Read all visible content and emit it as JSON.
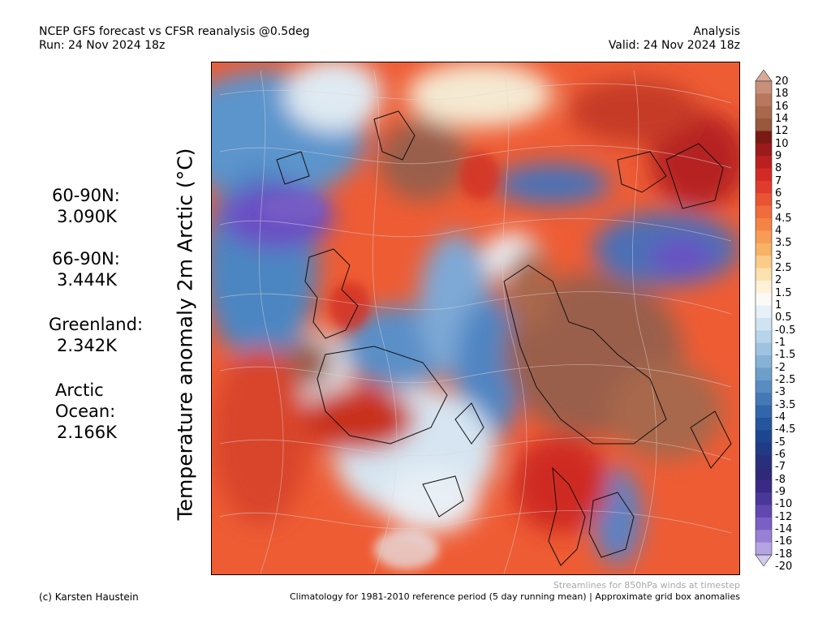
{
  "header": {
    "title": "NCEP GFS forecast vs CFSR reanalysis @0.5deg",
    "run": "Run: 24 Nov 2024 18z",
    "type": "Analysis",
    "valid": "Valid: 24 Nov 2024 18z"
  },
  "ylabel": "Temperature anomaly 2m Arctic (°C)",
  "stats": [
    {
      "label": "60-90N:",
      "value": "3.090K"
    },
    {
      "label": "66-90N:",
      "value": "3.444K"
    },
    {
      "label": "Greenland:",
      "value": "2.342K"
    },
    {
      "label": "Arctic",
      "label2": "Ocean:",
      "value": "2.166K"
    }
  ],
  "colorbar": {
    "labels": [
      "20",
      "18",
      "16",
      "14",
      "12",
      "10",
      "9",
      "8",
      "7",
      "6",
      "5",
      "4.5",
      "4",
      "3.5",
      "3",
      "2.5",
      "2",
      "1.5",
      "1",
      "0.5",
      "-0.5",
      "-1",
      "-1.5",
      "-2",
      "-2.5",
      "-3",
      "-3.5",
      "-4",
      "-4.5",
      "-5",
      "-6",
      "-7",
      "-8",
      "-9",
      "-10",
      "-12",
      "-14",
      "-16",
      "-18",
      "-20"
    ],
    "colors": [
      "#d8a898",
      "#c89078",
      "#b87860",
      "#a8684c",
      "#98583c",
      "#7a1a14",
      "#9c1a1a",
      "#bb2020",
      "#d42a26",
      "#e03c2e",
      "#ea5434",
      "#f06c3c",
      "#f48446",
      "#f69c54",
      "#f8b266",
      "#facc88",
      "#fce2ae",
      "#fff2d8",
      "#fafaf6",
      "#e6f0f8",
      "#cfe3f1",
      "#b7d4ea",
      "#9ec3e0",
      "#86b2d6",
      "#6e9fcb",
      "#598cc0",
      "#4479b5",
      "#3266aa",
      "#24559d",
      "#1c4690",
      "#203a86",
      "#28307e",
      "#302878",
      "#3a2a86",
      "#4a3898",
      "#6048b0",
      "#7a60c4",
      "#9880d4",
      "#b6a4e2",
      "#d4c8ee"
    ]
  },
  "map_colors": {
    "warm_dark": "#9a5f4c",
    "warm_red": "#cf2a23",
    "warm_orange": "#ee6a3a",
    "cold_blue": "#4c86c2",
    "cold_purple": "#6a4fc4",
    "neutral": "#eef3f7"
  },
  "footer": {
    "stream_note": "Streamlines for 850hPa winds at timestep",
    "left": "(c) Karsten Haustein",
    "right": "Climatology for 1981-2010 reference period (5 day running mean) | Approximate grid box anomalies"
  }
}
